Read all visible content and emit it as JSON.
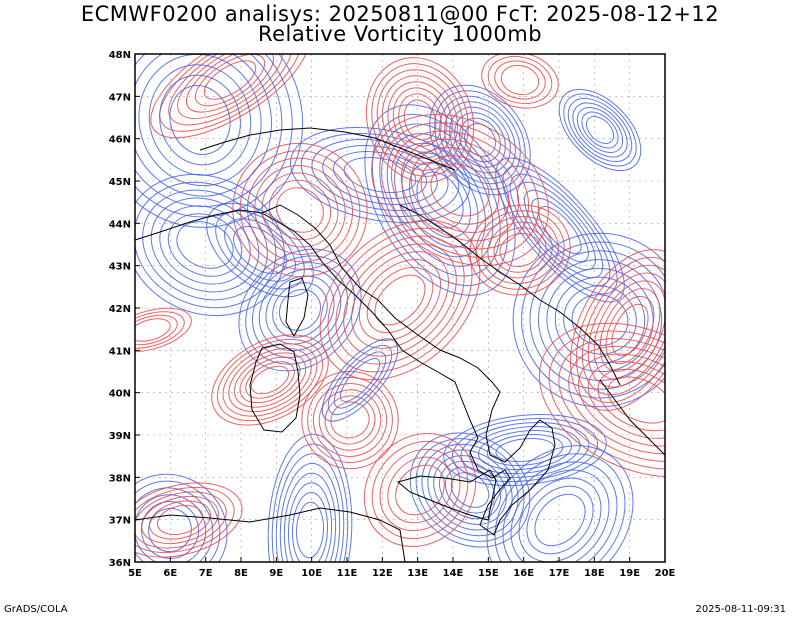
{
  "header": {
    "line1": "ECMWF0200 analisys: 20250811@00 FcT: 2025-08-12+12",
    "line2": "Relative Vorticity 1000mb"
  },
  "footer": {
    "left": "GrADS/COLA",
    "right": "2025-08-11-09:31"
  },
  "map": {
    "lon_range": [
      5,
      20
    ],
    "lat_range": [
      36,
      48
    ],
    "lon_ticks": [
      "5E",
      "6E",
      "7E",
      "8E",
      "9E",
      "10E",
      "11E",
      "12E",
      "13E",
      "14E",
      "15E",
      "16E",
      "17E",
      "18E",
      "19E",
      "20E"
    ],
    "lat_ticks": [
      "36N",
      "37N",
      "38N",
      "39N",
      "40N",
      "41N",
      "42N",
      "43N",
      "44N",
      "45N",
      "46N",
      "47N",
      "48N"
    ],
    "colors": {
      "positive": "#ef4343",
      "negative": "#4060ee",
      "coast": "#000000",
      "grid": "#a0a0a0"
    }
  }
}
